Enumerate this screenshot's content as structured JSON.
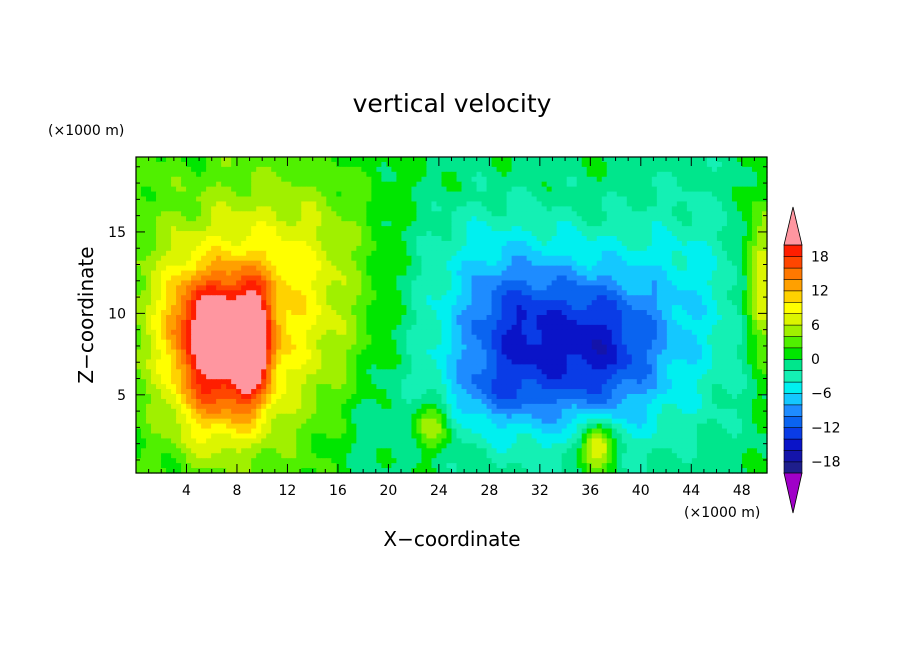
{
  "chart_data": {
    "type": "heatmap",
    "title": "vertical velocity",
    "xlabel": "X−coordinate",
    "ylabel": "Z−coordinate",
    "x_unit": "(×1000 m)",
    "y_unit": "(×1000 m)",
    "xlim": [
      0,
      50
    ],
    "ylim": [
      0.2,
      19.6
    ],
    "x_ticks": [
      4,
      8,
      12,
      16,
      20,
      24,
      28,
      32,
      36,
      40,
      44,
      48
    ],
    "x_tick_labels": [
      "4",
      "8",
      "12",
      "16",
      "20",
      "24",
      "28",
      "32",
      "36",
      "40",
      "44",
      "48"
    ],
    "y_ticks": [
      5,
      10,
      15
    ],
    "y_tick_labels": [
      "5",
      "10",
      "15"
    ],
    "colorbar": {
      "levels": [
        -20,
        -18,
        -16,
        -14,
        -12,
        -10,
        -8,
        -6,
        -4,
        -2,
        0,
        2,
        4,
        6,
        8,
        10,
        12,
        14,
        16,
        18,
        20
      ],
      "tick_values": [
        -18,
        -12,
        -6,
        0,
        6,
        12,
        18
      ],
      "tick_labels": [
        "−18",
        "−12",
        "−6",
        "0",
        "6",
        "12",
        "18"
      ],
      "colors": [
        "#1e1e8c",
        "#1414aa",
        "#0a14c8",
        "#0a3ce6",
        "#0a64f0",
        "#1e8cff",
        "#14c8ff",
        "#00f0f0",
        "#14f0b4",
        "#00e68c",
        "#00e600",
        "#50f000",
        "#a0f000",
        "#dcf500",
        "#ffff00",
        "#ffd200",
        "#ffa000",
        "#ff7800",
        "#ff4600",
        "#ff1e00"
      ],
      "under_color": "#a000c8",
      "over_color": "#ff96a0",
      "extend": "both"
    },
    "field_blobs": [
      {
        "x": 1,
        "z": 18.5,
        "rx": 1,
        "rz": 1,
        "amp": 1
      },
      {
        "x": 9,
        "z": 10,
        "rx": 10,
        "rz": 9,
        "amp": 4
      },
      {
        "x": 6,
        "z": 7,
        "rx": 3,
        "rz": 4.5,
        "amp": 6
      },
      {
        "x": 9.2,
        "z": 8,
        "rx": 1.6,
        "rz": 3.8,
        "amp": 7
      },
      {
        "x": 9,
        "z": 7,
        "rx": 0.8,
        "rz": 1,
        "amp": 3
      },
      {
        "x": 5.5,
        "z": 10,
        "rx": 3.5,
        "rz": 3,
        "amp": 3
      },
      {
        "x": 13,
        "z": 12,
        "rx": 4,
        "rz": 6,
        "amp": 1
      },
      {
        "x": 34,
        "z": 8,
        "rx": 11,
        "rz": 6,
        "amp": -5
      },
      {
        "x": 30,
        "z": 9,
        "rx": 4,
        "rz": 4,
        "amp": -2
      },
      {
        "x": 37,
        "z": 8,
        "rx": 4,
        "rz": 4,
        "amp": -2
      },
      {
        "x": 28,
        "z": 5,
        "rx": 4,
        "rz": 1.8,
        "amp": -1.5
      },
      {
        "x": 36.5,
        "z": 1.8,
        "rx": 1.3,
        "rz": 1.5,
        "amp": 6
      },
      {
        "x": 23.5,
        "z": 3.2,
        "rx": 1.5,
        "rz": 1.6,
        "amp": 3
      },
      {
        "x": 49.5,
        "z": 12,
        "rx": 1.3,
        "rz": 5,
        "amp": 4
      },
      {
        "x": 44,
        "z": 14,
        "rx": 5,
        "rz": 6,
        "amp": -1
      },
      {
        "x": 18.5,
        "z": 3,
        "rx": 3,
        "rz": 3,
        "amp": -1
      },
      {
        "x": 27,
        "z": 14,
        "rx": 6,
        "rz": 4,
        "amp": -1
      }
    ]
  }
}
